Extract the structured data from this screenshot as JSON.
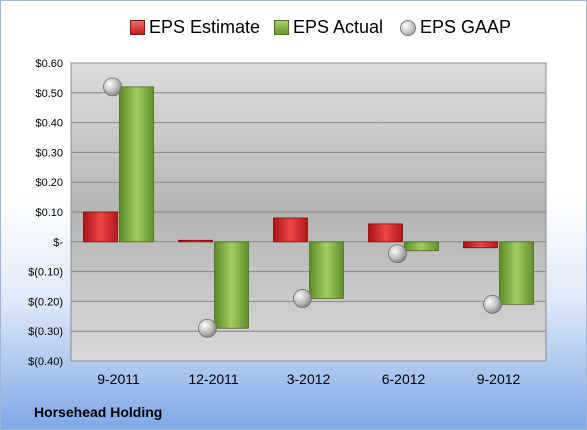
{
  "chart_data": {
    "type": "bar",
    "title": "",
    "xlabel": "",
    "ylabel": "",
    "categories": [
      "9-2011",
      "12-2011",
      "3-2012",
      "6-2012",
      "9-2012"
    ],
    "series": [
      {
        "name": "EPS Estimate",
        "values": [
          0.1,
          0.005,
          0.08,
          0.06,
          -0.02
        ]
      },
      {
        "name": "EPS Actual",
        "values": [
          0.52,
          -0.29,
          -0.19,
          -0.03,
          -0.21
        ]
      },
      {
        "name": "EPS GAAP",
        "values": [
          0.52,
          -0.29,
          -0.19,
          -0.04,
          -0.21
        ]
      }
    ],
    "ylim": [
      -0.4,
      0.6
    ],
    "yticks": [
      0.6,
      0.5,
      0.4,
      0.3,
      0.2,
      0.1,
      0,
      -0.1,
      -0.2,
      -0.3,
      -0.4
    ],
    "ytick_labels": [
      "$0.60",
      "$0.50",
      "$0.40",
      "$0.30",
      "$0.20",
      "$0.10",
      "$-",
      "$(0.10)",
      "$(0.20)",
      "$(0.30)",
      "$(0.40)"
    ],
    "grid": true,
    "legend_position": "top"
  },
  "legend": {
    "estimate_label": "EPS Estimate",
    "actual_label": "EPS Actual",
    "gaap_label": "EPS GAAP"
  },
  "footer": {
    "company": "Horsehead Holding"
  },
  "colors": {
    "estimate": "#d42a2a",
    "actual": "#7aaa3a",
    "gaap": "#bbbbbb"
  }
}
